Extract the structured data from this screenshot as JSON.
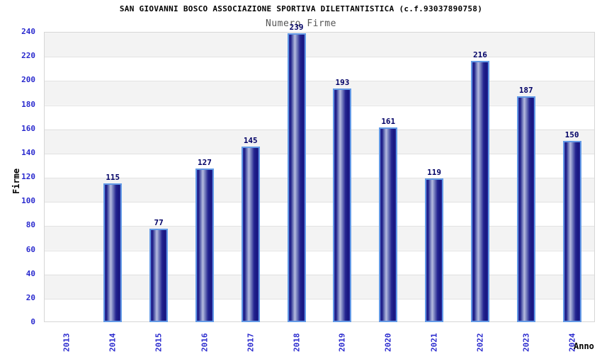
{
  "chart_data": {
    "type": "bar",
    "title": "SAN GIOVANNI BOSCO ASSOCIAZIONE SPORTIVA DILETTANTISTICA (c.f.93037890758)",
    "subtitle": "Numero Firme",
    "xlabel": "Anno",
    "ylabel": "Firme",
    "categories": [
      "2013",
      "2014",
      "2015",
      "2016",
      "2017",
      "2018",
      "2019",
      "2020",
      "2021",
      "2022",
      "2023",
      "2024"
    ],
    "values": [
      0,
      115,
      77,
      127,
      145,
      239,
      193,
      161,
      119,
      216,
      187,
      150
    ],
    "ylim": [
      0,
      240
    ],
    "ytick_step": 20,
    "grid": true,
    "legend": "none",
    "band_fill": "alternating horizontal bands",
    "colors": {
      "bar_gradient_dark": "#1a1a85",
      "bar_gradient_highlight": "#b7bcdf",
      "bar_border": "#639ae6",
      "tick_label": "#2a2ace",
      "value_label": "#000066",
      "title": "#000000",
      "subtitle": "#555555",
      "band_gray": "#f3f3f3",
      "band_white": "#ffffff",
      "gridline": "#e2e2e2"
    }
  }
}
